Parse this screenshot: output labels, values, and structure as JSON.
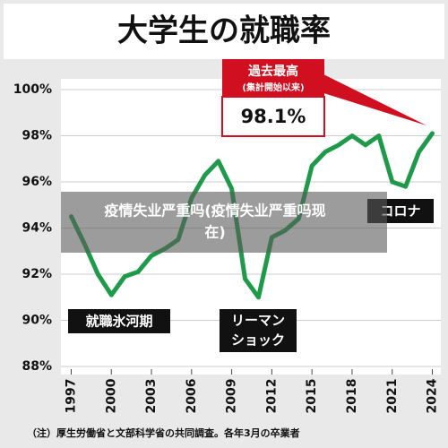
{
  "chart_data": {
    "type": "line",
    "title": "大学生の就職率",
    "x": [
      1997,
      1998,
      1999,
      2000,
      2001,
      2002,
      2003,
      2004,
      2005,
      2006,
      2007,
      2008,
      2009,
      2010,
      2011,
      2012,
      2013,
      2014,
      2015,
      2016,
      2017,
      2018,
      2019,
      2020,
      2021,
      2022,
      2023,
      2024
    ],
    "values": [
      94.5,
      93.3,
      92.0,
      91.1,
      91.9,
      92.1,
      92.8,
      93.1,
      93.5,
      95.3,
      96.3,
      96.9,
      95.7,
      91.8,
      91.0,
      93.6,
      93.9,
      94.4,
      96.7,
      97.3,
      97.6,
      98.0,
      97.6,
      98.0,
      96.0,
      95.8,
      97.3,
      98.1
    ],
    "color": "#1e9a4a",
    "xlim": [
      1996.5,
      2024.5
    ],
    "xticks": [
      1997,
      2000,
      2003,
      2006,
      2009,
      2012,
      2015,
      2018,
      2021,
      2024
    ],
    "ylim": [
      88,
      100
    ],
    "yticks": [
      {
        "value": 88,
        "label": "88%"
      },
      {
        "value": 90,
        "label": "90%"
      },
      {
        "value": 92,
        "label": "92%"
      },
      {
        "value": 94,
        "label": "94%"
      },
      {
        "value": 96,
        "label": "96%"
      },
      {
        "value": 98,
        "label": "98%"
      },
      {
        "value": 100,
        "label": "100%"
      }
    ],
    "grid": true,
    "annotations": {
      "record_title": "過去最高",
      "record_sub": "(集計開始以来)",
      "record_value": "98.1%",
      "ice_age": "就職氷河期",
      "lehman_1": "リーマン",
      "lehman_2": "ショック",
      "corona": "コロナ"
    },
    "note": "（注）厚生労働省と文部科学省の共同調査。各年3月の卒業者",
    "watermark": [
      "疫情失业严重吗(疫情失业严重吗现",
      "在)"
    ]
  }
}
